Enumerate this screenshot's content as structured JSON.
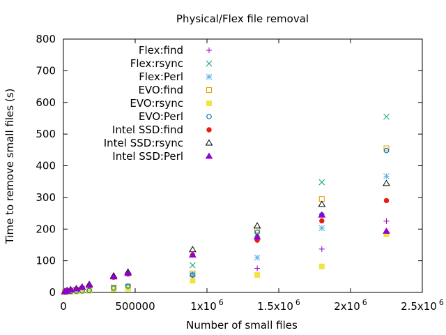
{
  "chart_data": {
    "type": "scatter",
    "title": "Physical/Flex file removal",
    "xlabel": "Number of small files",
    "ylabel": "Time to remove small files (s)",
    "xlim": [
      0,
      2500000
    ],
    "ylim": [
      0,
      800
    ],
    "x_ticks": [
      {
        "value": 0,
        "label": "0",
        "exp": ""
      },
      {
        "value": 500000,
        "label": "500000",
        "exp": ""
      },
      {
        "value": 1000000,
        "label": "1x10",
        "exp": "6"
      },
      {
        "value": 1500000,
        "label": "1.5x10",
        "exp": "6"
      },
      {
        "value": 2000000,
        "label": "2x10",
        "exp": "6"
      },
      {
        "value": 2500000,
        "label": "2.5x10",
        "exp": "6"
      }
    ],
    "y_ticks": [
      {
        "value": 0,
        "label": "0"
      },
      {
        "value": 100,
        "label": "100"
      },
      {
        "value": 200,
        "label": "200"
      },
      {
        "value": 300,
        "label": "300"
      },
      {
        "value": 400,
        "label": "400"
      },
      {
        "value": 500,
        "label": "500"
      },
      {
        "value": 600,
        "label": "600"
      },
      {
        "value": 700,
        "label": "700"
      },
      {
        "value": 800,
        "label": "800"
      }
    ],
    "grid": false,
    "legend_position": "top-left",
    "series": [
      {
        "name": "Flex:find",
        "marker": "plus",
        "color": "#9400d3",
        "points": [
          [
            10000,
            1
          ],
          [
            25000,
            2
          ],
          [
            50000,
            3
          ],
          [
            90000,
            4
          ],
          [
            130000,
            5
          ],
          [
            180000,
            6
          ],
          [
            350000,
            12
          ],
          [
            450000,
            15
          ],
          [
            900000,
            50
          ],
          [
            1350000,
            76
          ],
          [
            1800000,
            137
          ],
          [
            2250000,
            225
          ]
        ]
      },
      {
        "name": "Flex:rsync",
        "marker": "cross",
        "color": "#009e73",
        "points": [
          [
            10000,
            2
          ],
          [
            25000,
            4
          ],
          [
            50000,
            6
          ],
          [
            90000,
            8
          ],
          [
            130000,
            10
          ],
          [
            180000,
            12
          ],
          [
            350000,
            16
          ],
          [
            450000,
            18
          ],
          [
            900000,
            86
          ],
          [
            1350000,
            185
          ],
          [
            1800000,
            348
          ],
          [
            2250000,
            555
          ]
        ]
      },
      {
        "name": "Flex:Perl",
        "marker": "star",
        "color": "#56b4e9",
        "points": [
          [
            10000,
            1
          ],
          [
            25000,
            2
          ],
          [
            50000,
            3
          ],
          [
            90000,
            5
          ],
          [
            130000,
            6
          ],
          [
            180000,
            7
          ],
          [
            350000,
            12
          ],
          [
            450000,
            16
          ],
          [
            900000,
            57
          ],
          [
            1350000,
            110
          ],
          [
            1800000,
            203
          ],
          [
            2250000,
            367
          ]
        ]
      },
      {
        "name": "EVO:find",
        "marker": "box",
        "color": "#e69f00",
        "points": [
          [
            10000,
            1
          ],
          [
            25000,
            2
          ],
          [
            50000,
            3
          ],
          [
            90000,
            4
          ],
          [
            130000,
            5
          ],
          [
            180000,
            6
          ],
          [
            350000,
            15
          ],
          [
            450000,
            18
          ],
          [
            900000,
            60
          ],
          [
            1350000,
            195
          ],
          [
            1800000,
            295
          ],
          [
            2250000,
            455
          ]
        ]
      },
      {
        "name": "EVO:rsync",
        "marker": "boxfill",
        "color": "#f0e442",
        "points": [
          [
            10000,
            1
          ],
          [
            25000,
            1
          ],
          [
            50000,
            2
          ],
          [
            90000,
            3
          ],
          [
            130000,
            4
          ],
          [
            180000,
            5
          ],
          [
            350000,
            10
          ],
          [
            450000,
            12
          ],
          [
            900000,
            37
          ],
          [
            1350000,
            55
          ],
          [
            1800000,
            82
          ],
          [
            2250000,
            183
          ]
        ]
      },
      {
        "name": "EVO:Perl",
        "marker": "circle",
        "color": "#0072b2",
        "points": [
          [
            10000,
            1
          ],
          [
            25000,
            2
          ],
          [
            50000,
            3
          ],
          [
            90000,
            4
          ],
          [
            130000,
            5
          ],
          [
            180000,
            6
          ],
          [
            350000,
            14
          ],
          [
            450000,
            20
          ],
          [
            900000,
            55
          ],
          [
            1350000,
            190
          ],
          [
            1800000,
            245
          ],
          [
            2250000,
            448
          ]
        ]
      },
      {
        "name": "Intel SSD:find",
        "marker": "circlefill",
        "color": "#e51e10",
        "points": [
          [
            10000,
            2
          ],
          [
            25000,
            5
          ],
          [
            50000,
            8
          ],
          [
            90000,
            11
          ],
          [
            130000,
            15
          ],
          [
            180000,
            22
          ],
          [
            350000,
            48
          ],
          [
            450000,
            58
          ],
          [
            900000,
            118
          ],
          [
            1350000,
            165
          ],
          [
            1800000,
            226
          ],
          [
            2250000,
            290
          ]
        ]
      },
      {
        "name": "Intel SSD:rsync",
        "marker": "triangle",
        "color": "#000000",
        "points": [
          [
            10000,
            3
          ],
          [
            25000,
            6
          ],
          [
            50000,
            9
          ],
          [
            90000,
            12
          ],
          [
            130000,
            17
          ],
          [
            180000,
            25
          ],
          [
            350000,
            52
          ],
          [
            450000,
            64
          ],
          [
            900000,
            135
          ],
          [
            1350000,
            210
          ],
          [
            1800000,
            278
          ],
          [
            2250000,
            344
          ]
        ]
      },
      {
        "name": "Intel SSD:Perl",
        "marker": "trianglefill",
        "color": "#9400d3",
        "points": [
          [
            10000,
            2
          ],
          [
            25000,
            5
          ],
          [
            50000,
            8
          ],
          [
            90000,
            11
          ],
          [
            130000,
            16
          ],
          [
            180000,
            23
          ],
          [
            350000,
            49
          ],
          [
            450000,
            60
          ],
          [
            900000,
            118
          ],
          [
            1350000,
            175
          ],
          [
            1800000,
            244
          ],
          [
            2250000,
            193
          ]
        ]
      }
    ]
  }
}
